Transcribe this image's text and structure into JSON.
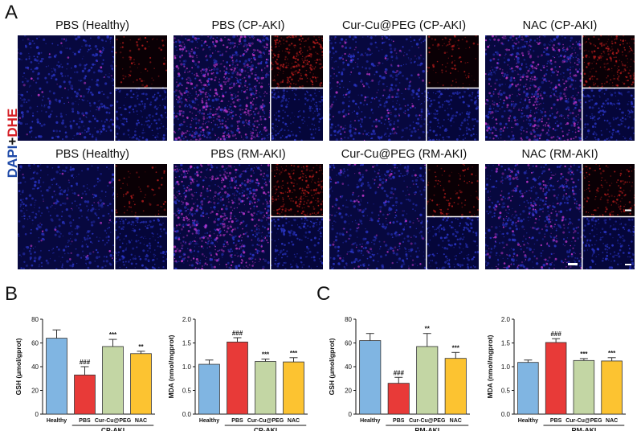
{
  "panels": {
    "A": "A",
    "B": "B",
    "C": "C"
  },
  "stain_label": {
    "dapi": "DAPI",
    "plus": "+",
    "dhe": "DHE"
  },
  "micrographs": {
    "row1": [
      "PBS (Healthy)",
      "PBS (CP-AKI)",
      "Cur-Cu@PEG (CP-AKI)",
      "NAC (CP-AKI)"
    ],
    "row2": [
      "PBS (Healthy)",
      "PBS (RM-AKI)",
      "Cur-Cu@PEG (RM-AKI)",
      "NAC (RM-AKI)"
    ]
  },
  "colors": {
    "healthy": "#80b5e2",
    "pbs": "#e83a38",
    "cur": "#c3d6a4",
    "nac": "#fcc331",
    "tissue_bg": "#07083f",
    "dapi": "#2b36c8",
    "dhe": "#c838d0"
  },
  "chart_data": [
    {
      "type": "bar",
      "panel": "B",
      "categories": [
        "Healthy",
        "PBS",
        "Cur-Cu@PEG",
        "NAC"
      ],
      "values": [
        64,
        33,
        57,
        51
      ],
      "errors": [
        7,
        7,
        6,
        2
      ],
      "significance": [
        "",
        "###",
        "***",
        "**"
      ],
      "ylabel": "GSH (μmol/gprot)",
      "ylim": [
        0,
        80
      ],
      "yticks": [
        0,
        20,
        40,
        60,
        80
      ],
      "group_label": "CP-AKI"
    },
    {
      "type": "bar",
      "panel": "B",
      "categories": [
        "Healthy",
        "PBS",
        "Cur-Cu@PEG",
        "NAC"
      ],
      "values": [
        1.05,
        1.52,
        1.11,
        1.1
      ],
      "errors": [
        0.09,
        0.09,
        0.05,
        0.09
      ],
      "significance": [
        "",
        "###",
        "***",
        "***"
      ],
      "ylabel": "MDA (nmol/mgprot)",
      "ylim": [
        0,
        2.0
      ],
      "yticks": [
        "0.0",
        "0.5",
        "1.0",
        "1.5",
        "2.0"
      ],
      "group_label": "CP-AKI"
    },
    {
      "type": "bar",
      "panel": "C",
      "categories": [
        "Healthy",
        "PBS",
        "Cur-Cu@PEG",
        "NAC"
      ],
      "values": [
        62,
        26,
        57,
        47
      ],
      "errors": [
        6,
        5,
        11,
        5
      ],
      "significance": [
        "",
        "###",
        "**",
        "***"
      ],
      "ylabel": "GSH (μmol/gprot)",
      "ylim": [
        0,
        80
      ],
      "yticks": [
        0,
        20,
        40,
        60,
        80
      ],
      "group_label": "RM-AKI"
    },
    {
      "type": "bar",
      "panel": "C",
      "categories": [
        "Healthy",
        "PBS",
        "Cur-Cu@PEG",
        "NAC"
      ],
      "values": [
        1.09,
        1.51,
        1.13,
        1.12
      ],
      "errors": [
        0.05,
        0.08,
        0.04,
        0.07
      ],
      "significance": [
        "",
        "###",
        "***",
        "***"
      ],
      "ylabel": "MDA (nmol/mgprot)",
      "ylim": [
        0,
        2.0
      ],
      "yticks": [
        "0.0",
        "0.5",
        "1.0",
        "1.5",
        "2.0"
      ],
      "group_label": "RM-AKI"
    }
  ]
}
